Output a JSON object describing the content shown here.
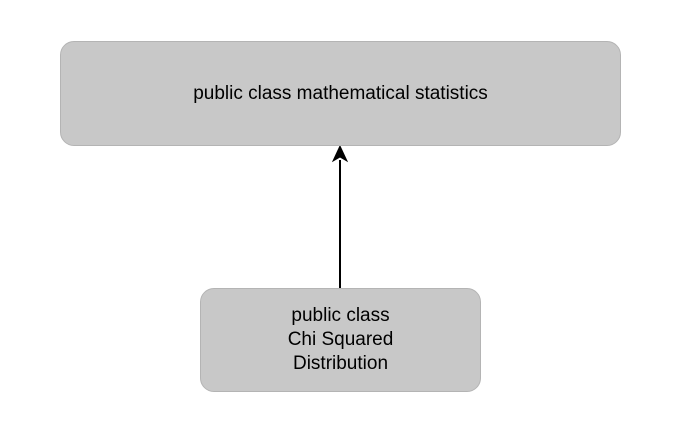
{
  "diagram": {
    "parent_class": {
      "label": "public class mathematical statistics"
    },
    "child_class": {
      "lines": [
        "public class",
        "Chi Squared",
        "Distribution"
      ]
    },
    "relationship": {
      "type": "inheritance-arrow"
    }
  }
}
